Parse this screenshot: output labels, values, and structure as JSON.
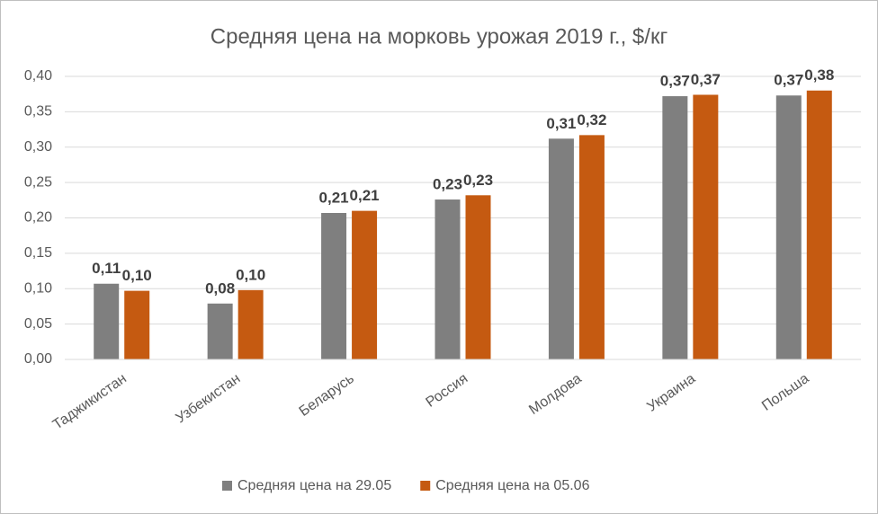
{
  "chart_data": {
    "type": "bar",
    "title": "Средняя цена на морковь урожая 2019 г., $/кг",
    "categories": [
      "Таджикистан",
      "Узбекистан",
      "Беларусь",
      "Россия",
      "Молдова",
      "Украина",
      "Польша"
    ],
    "series": [
      {
        "name": "Средняя цена на 29.05",
        "color": "#7f7f7f",
        "values": [
          0.107,
          0.079,
          0.207,
          0.226,
          0.312,
          0.372,
          0.373
        ],
        "value_labels": [
          "0,11",
          "0,08",
          "0,21",
          "0,23",
          "0,31",
          "0,37",
          "0,37"
        ]
      },
      {
        "name": "Средняя цена на 05.06",
        "color": "#c55a11",
        "values": [
          0.097,
          0.098,
          0.21,
          0.232,
          0.317,
          0.374,
          0.38
        ],
        "value_labels": [
          "0,10",
          "0,10",
          "0,21",
          "0,23",
          "0,32",
          "0,37",
          "0,38"
        ]
      }
    ],
    "ylim": [
      0,
      0.4
    ],
    "yticks": [
      {
        "value": 0,
        "label": "0,00"
      },
      {
        "value": 0.05,
        "label": "0,05"
      },
      {
        "value": 0.1,
        "label": "0,10"
      },
      {
        "value": 0.15,
        "label": "0,15"
      },
      {
        "value": 0.2,
        "label": "0,20"
      },
      {
        "value": 0.25,
        "label": "0,25"
      },
      {
        "value": 0.3,
        "label": "0,30"
      },
      {
        "value": 0.35,
        "label": "0,35"
      },
      {
        "value": 0.4,
        "label": "0,40"
      }
    ],
    "grid": true,
    "legend": "bottom"
  }
}
